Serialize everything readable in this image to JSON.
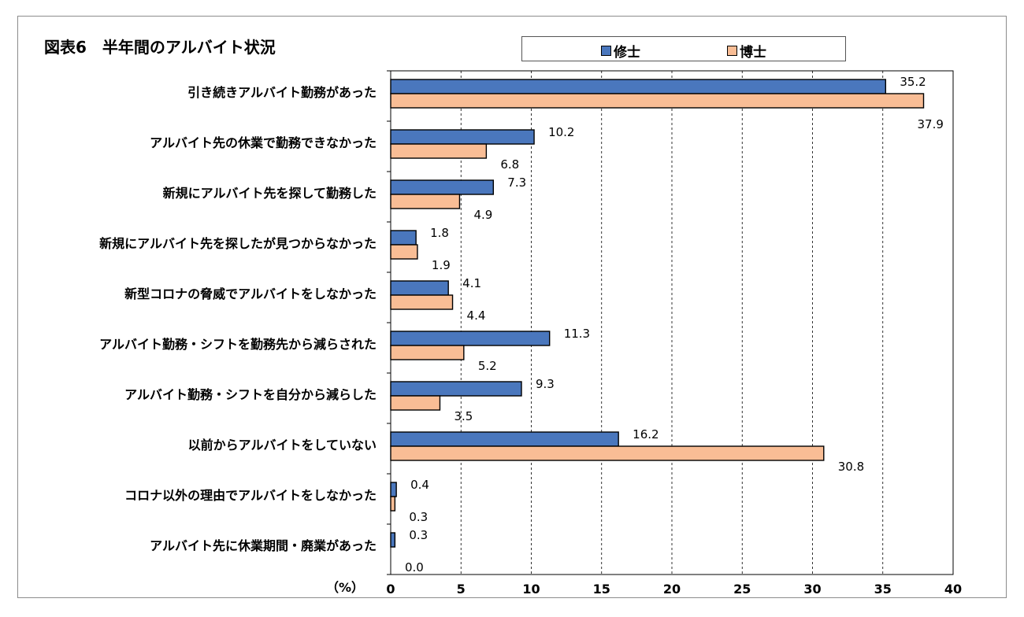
{
  "chart_data": {
    "type": "bar",
    "orientation": "horizontal",
    "title": "図表6　半年間のアルバイト状況",
    "unit_label": "（%）",
    "categories": [
      "引き続きアルバイト勤務があった",
      "アルバイト先の休業で勤務できなかった",
      "新規にアルバイト先を探して勤務した",
      "新規にアルバイト先を探したが見つからなかった",
      "新型コロナの脅威でアルバイトをしなかった",
      "アルバイト勤務・シフトを勤務先から減らされた",
      "アルバイト勤務・シフトを自分から減らした",
      "以前からアルバイトをしていない",
      "コロナ以外の理由でアルバイトをしなかった",
      "アルバイト先に休業期間・廃業があった"
    ],
    "series": [
      {
        "name": "修士",
        "color": "#4a77bd",
        "values": [
          35.2,
          10.2,
          7.3,
          1.8,
          4.1,
          11.3,
          9.3,
          16.2,
          0.4,
          0.3
        ]
      },
      {
        "name": "博士",
        "color": "#f9bd95",
        "values": [
          37.9,
          6.8,
          4.9,
          1.9,
          4.4,
          5.2,
          3.5,
          30.8,
          0.3,
          0.0
        ]
      }
    ],
    "xlim": [
      0,
      40
    ],
    "xticks": [
      "0",
      "5",
      "10",
      "15",
      "20",
      "25",
      "30",
      "35",
      "40"
    ],
    "grid": "vertical dashed",
    "legend_placement": "top"
  }
}
